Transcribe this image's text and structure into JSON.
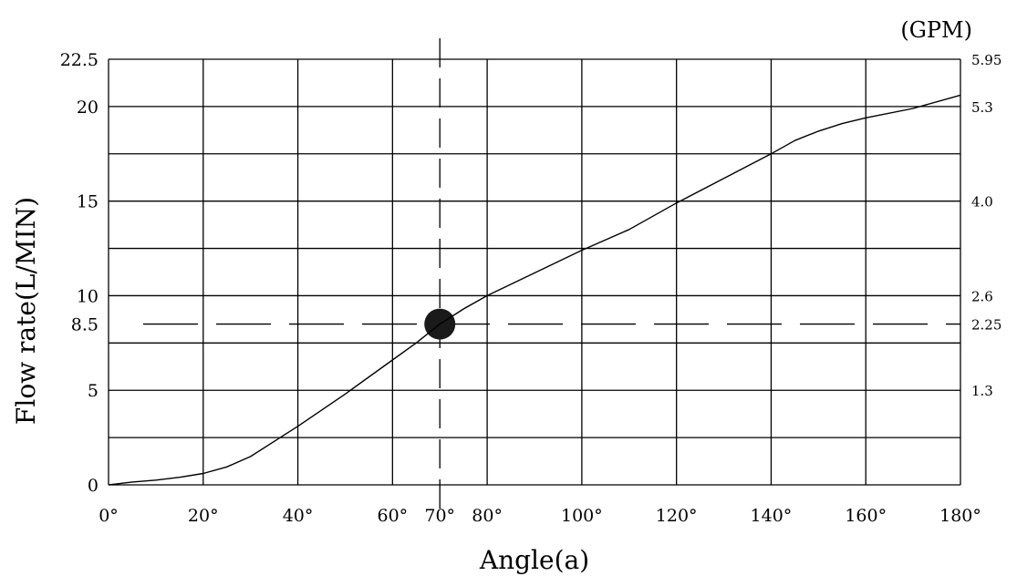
{
  "chart_data": {
    "type": "line",
    "title": "",
    "xlabel": "Angle(a)",
    "ylabel": "Flow rate(L/MIN)",
    "y2label": "(GPM)",
    "xlim": [
      0,
      180
    ],
    "ylim": [
      0,
      22.5
    ],
    "grid": true,
    "x_ticks": [
      {
        "v": 0,
        "label": "0°"
      },
      {
        "v": 20,
        "label": "20°"
      },
      {
        "v": 40,
        "label": "40°"
      },
      {
        "v": 60,
        "label": "60°"
      },
      {
        "v": 70,
        "label": "70°"
      },
      {
        "v": 80,
        "label": "80°"
      },
      {
        "v": 100,
        "label": "100°"
      },
      {
        "v": 120,
        "label": "120°"
      },
      {
        "v": 140,
        "label": "140°"
      },
      {
        "v": 160,
        "label": "160°"
      },
      {
        "v": 180,
        "label": "180°"
      }
    ],
    "y_ticks": [
      {
        "v": 0,
        "label": "0"
      },
      {
        "v": 5,
        "label": "5"
      },
      {
        "v": 8.5,
        "label": "8.5"
      },
      {
        "v": 10,
        "label": "10"
      },
      {
        "v": 15,
        "label": "15"
      },
      {
        "v": 20,
        "label": "20"
      },
      {
        "v": 22.5,
        "label": "22.5"
      }
    ],
    "y2_ticks": [
      {
        "v": 5,
        "label": "1.3"
      },
      {
        "v": 8.5,
        "label": "2.25"
      },
      {
        "v": 10,
        "label": "2.6"
      },
      {
        "v": 15,
        "label": "4.0"
      },
      {
        "v": 20,
        "label": "5.3"
      },
      {
        "v": 22.5,
        "label": "5.95"
      }
    ],
    "x_grid": [
      0,
      20,
      40,
      60,
      80,
      100,
      120,
      140,
      160,
      180
    ],
    "y_grid": [
      0,
      2.5,
      5,
      7.5,
      10,
      12.5,
      15,
      17.5,
      20,
      22.5
    ],
    "series": [
      {
        "x": [
          0,
          5,
          10,
          15,
          20,
          25,
          30,
          35,
          40,
          50,
          60,
          65,
          70,
          75,
          80,
          90,
          100,
          110,
          120,
          130,
          140,
          145,
          150,
          155,
          160,
          170,
          180
        ],
        "y": [
          0,
          0.15,
          0.25,
          0.4,
          0.6,
          0.95,
          1.5,
          2.3,
          3.1,
          4.8,
          6.6,
          7.5,
          8.5,
          9.3,
          10.0,
          11.2,
          12.4,
          13.5,
          14.9,
          16.2,
          17.5,
          18.2,
          18.7,
          19.1,
          19.4,
          19.9,
          20.6
        ]
      }
    ],
    "reference": {
      "x": 70,
      "y": 8.5
    }
  }
}
